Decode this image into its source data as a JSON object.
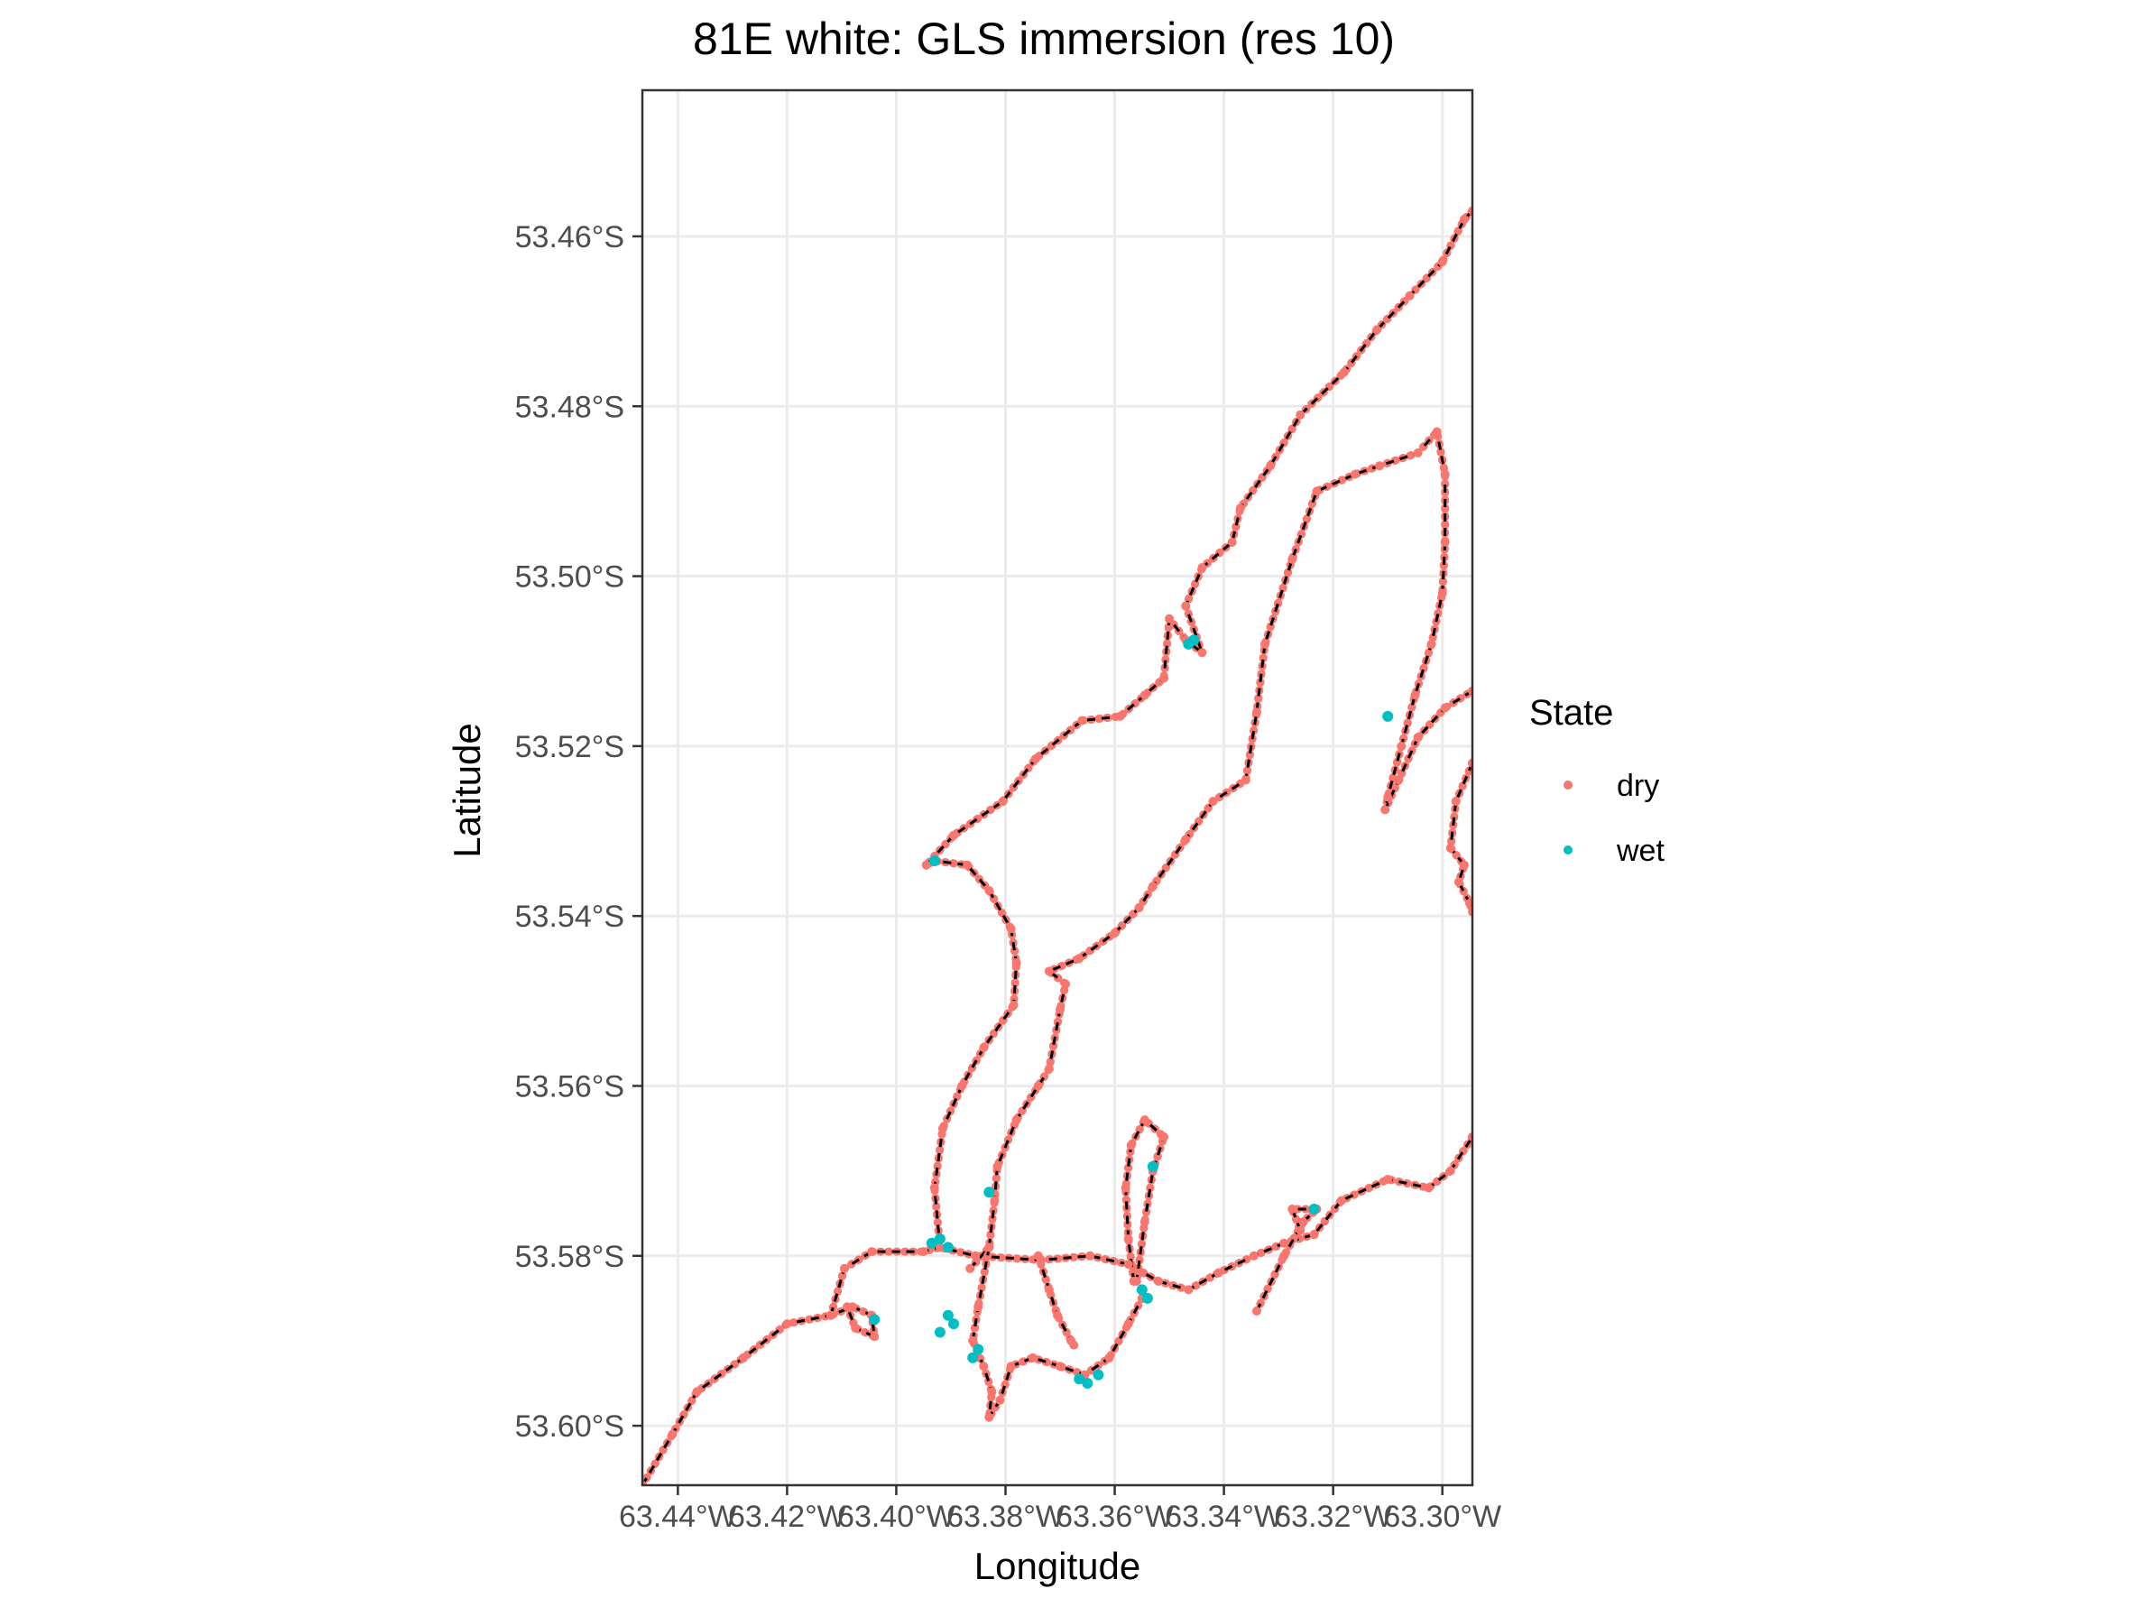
{
  "chart_data": {
    "type": "scatter",
    "title": "81E white: GLS immersion (res 10)",
    "xlabel": "Longitude",
    "ylabel": "Latitude",
    "xlim": [
      -63.4465,
      -63.2945
    ],
    "ylim": [
      -53.607,
      -53.4428
    ],
    "x_ticks": [
      {
        "value": -63.44,
        "label": "63.44°W"
      },
      {
        "value": -63.42,
        "label": "63.42°W"
      },
      {
        "value": -63.4,
        "label": "63.40°W"
      },
      {
        "value": -63.38,
        "label": "63.38°W"
      },
      {
        "value": -63.36,
        "label": "63.36°W"
      },
      {
        "value": -63.34,
        "label": "63.34°W"
      },
      {
        "value": -63.32,
        "label": "63.32°W"
      },
      {
        "value": -63.3,
        "label": "63.30°W"
      }
    ],
    "y_ticks": [
      {
        "value": -53.46,
        "label": "53.46°S"
      },
      {
        "value": -53.48,
        "label": "53.48°S"
      },
      {
        "value": -53.5,
        "label": "53.50°S"
      },
      {
        "value": -53.52,
        "label": "53.52°S"
      },
      {
        "value": -53.54,
        "label": "53.54°S"
      },
      {
        "value": -53.56,
        "label": "53.56°S"
      },
      {
        "value": -53.58,
        "label": "53.58°S"
      },
      {
        "value": -53.6,
        "label": "53.60°S"
      }
    ],
    "grid": true,
    "legend": {
      "title": "State",
      "position": "right",
      "entries": [
        {
          "label": "dry",
          "color": "#F8766D"
        },
        {
          "label": "wet",
          "color": "#00BFC4"
        }
      ]
    },
    "track_line_color": "#000000",
    "paths": [
      {
        "state": "dry",
        "points": [
          [
            -63.4465,
            -53.607
          ],
          [
            -63.441,
            -53.601
          ],
          [
            -63.4365,
            -53.596
          ],
          [
            -63.428,
            -53.592
          ],
          [
            -63.42,
            -53.588
          ],
          [
            -63.412,
            -53.587
          ],
          [
            -63.408,
            -53.586
          ],
          [
            -63.4045,
            -53.587
          ],
          [
            -63.404,
            -53.5895
          ],
          [
            -63.4075,
            -53.5885
          ],
          [
            -63.409,
            -53.586
          ]
        ]
      },
      {
        "state": "dry",
        "points": [
          [
            -63.412,
            -53.587
          ],
          [
            -63.4095,
            -53.5815
          ],
          [
            -63.4045,
            -53.5795
          ],
          [
            -63.395,
            -53.5795
          ],
          [
            -63.392,
            -53.579
          ],
          [
            -63.3855,
            -53.58
          ],
          [
            -63.3735,
            -53.5805
          ],
          [
            -63.3645,
            -53.58
          ],
          [
            -63.3575,
            -53.581
          ],
          [
            -63.352,
            -53.583
          ],
          [
            -63.3465,
            -53.584
          ],
          [
            -63.341,
            -53.582
          ],
          [
            -63.3345,
            -53.58
          ],
          [
            -63.329,
            -53.5785
          ],
          [
            -63.3235,
            -53.5775
          ],
          [
            -63.3185,
            -53.5735
          ],
          [
            -63.31,
            -53.571
          ],
          [
            -63.3025,
            -53.572
          ],
          [
            -63.2985,
            -53.57
          ],
          [
            -63.2945,
            -53.566
          ]
        ]
      },
      {
        "state": "dry",
        "points": [
          [
            -63.3865,
            -53.5815
          ],
          [
            -63.383,
            -53.579
          ],
          [
            -63.382,
            -53.5735
          ],
          [
            -63.3815,
            -53.5695
          ],
          [
            -63.378,
            -53.564
          ],
          [
            -63.374,
            -53.56
          ],
          [
            -63.372,
            -53.558
          ],
          [
            -63.37,
            -53.551
          ],
          [
            -63.369,
            -53.548
          ],
          [
            -63.372,
            -53.5465
          ],
          [
            -63.3665,
            -53.545
          ],
          [
            -63.36,
            -53.542
          ],
          [
            -63.3555,
            -53.539
          ],
          [
            -63.353,
            -53.5365
          ],
          [
            -63.347,
            -53.531
          ],
          [
            -63.342,
            -53.5265
          ],
          [
            -63.336,
            -53.524
          ],
          [
            -63.334,
            -53.516
          ],
          [
            -63.3325,
            -53.508
          ],
          [
            -63.3275,
            -53.498
          ],
          [
            -63.323,
            -53.49
          ],
          [
            -63.316,
            -53.488
          ],
          [
            -63.3115,
            -53.487
          ],
          [
            -63.3045,
            -53.4855
          ],
          [
            -63.301,
            -53.483
          ],
          [
            -63.2995,
            -53.488
          ],
          [
            -63.2995,
            -53.496
          ],
          [
            -63.3,
            -53.502
          ],
          [
            -63.302,
            -53.508
          ],
          [
            -63.305,
            -53.514
          ],
          [
            -63.3075,
            -53.52
          ],
          [
            -63.31,
            -53.526
          ],
          [
            -63.3105,
            -53.5275
          ],
          [
            -63.308,
            -53.524
          ],
          [
            -63.3045,
            -53.519
          ],
          [
            -63.2995,
            -53.5155
          ],
          [
            -63.2945,
            -53.5135
          ]
        ]
      },
      {
        "state": "dry",
        "points": [
          [
            -63.2945,
            -53.522
          ],
          [
            -63.2975,
            -53.5265
          ],
          [
            -63.2985,
            -53.532
          ],
          [
            -63.296,
            -53.534
          ],
          [
            -63.297,
            -53.536
          ],
          [
            -63.295,
            -53.5385
          ],
          [
            -63.2945,
            -53.5395
          ]
        ]
      },
      {
        "state": "dry",
        "points": [
          [
            -63.392,
            -53.579
          ],
          [
            -63.393,
            -53.572
          ],
          [
            -63.3915,
            -53.565
          ],
          [
            -63.388,
            -53.56
          ],
          [
            -63.384,
            -53.5555
          ],
          [
            -63.3785,
            -53.5505
          ],
          [
            -63.378,
            -53.5455
          ],
          [
            -63.379,
            -53.5415
          ],
          [
            -63.383,
            -53.537
          ],
          [
            -63.387,
            -53.534
          ],
          [
            -63.393,
            -53.5335
          ],
          [
            -63.3945,
            -53.534
          ],
          [
            -63.3895,
            -53.5305
          ],
          [
            -63.3805,
            -53.5265
          ],
          [
            -63.3745,
            -53.5215
          ],
          [
            -63.366,
            -53.517
          ],
          [
            -63.359,
            -53.5165
          ],
          [
            -63.3545,
            -53.514
          ],
          [
            -63.351,
            -53.512
          ],
          [
            -63.35,
            -53.505
          ],
          [
            -63.347,
            -53.5075
          ],
          [
            -63.344,
            -53.509
          ],
          [
            -63.347,
            -53.5035
          ],
          [
            -63.344,
            -53.499
          ],
          [
            -63.3385,
            -53.496
          ],
          [
            -63.337,
            -53.492
          ],
          [
            -63.3315,
            -53.487
          ],
          [
            -63.326,
            -53.481
          ],
          [
            -63.318,
            -53.476
          ],
          [
            -63.312,
            -53.471
          ],
          [
            -63.306,
            -53.467
          ],
          [
            -63.3,
            -53.463
          ],
          [
            -63.296,
            -53.458
          ],
          [
            -63.2945,
            -53.457
          ]
        ]
      },
      {
        "state": "dry",
        "points": [
          [
            -63.383,
            -53.579
          ],
          [
            -63.385,
            -53.586
          ],
          [
            -63.386,
            -53.59
          ],
          [
            -63.384,
            -53.593
          ],
          [
            -63.3825,
            -53.596
          ],
          [
            -63.383,
            -53.599
          ],
          [
            -63.381,
            -53.597
          ],
          [
            -63.379,
            -53.593
          ],
          [
            -63.375,
            -53.592
          ],
          [
            -63.37,
            -53.593
          ],
          [
            -63.3655,
            -53.594
          ],
          [
            -63.361,
            -53.592
          ],
          [
            -63.3575,
            -53.588
          ],
          [
            -63.355,
            -53.585
          ]
        ]
      },
      {
        "state": "dry",
        "points": [
          [
            -63.374,
            -53.58
          ],
          [
            -63.372,
            -53.584
          ],
          [
            -63.3705,
            -53.587
          ],
          [
            -63.368,
            -53.59
          ],
          [
            -63.3675,
            -53.5905
          ]
        ]
      },
      {
        "state": "dry",
        "points": [
          [
            -63.3565,
            -53.583
          ],
          [
            -63.3575,
            -53.578
          ],
          [
            -63.358,
            -53.572
          ],
          [
            -63.357,
            -53.567
          ],
          [
            -63.3545,
            -53.564
          ],
          [
            -63.351,
            -53.566
          ],
          [
            -63.353,
            -53.57
          ],
          [
            -63.3545,
            -53.576
          ],
          [
            -63.356,
            -53.583
          ]
        ]
      },
      {
        "state": "dry",
        "points": [
          [
            -63.334,
            -53.5865
          ],
          [
            -63.329,
            -53.58
          ],
          [
            -63.3255,
            -53.576
          ],
          [
            -63.323,
            -53.5745
          ],
          [
            -63.3275,
            -53.5745
          ],
          [
            -63.326,
            -53.577
          ]
        ]
      }
    ],
    "wet_points": [
      [
        -63.3935,
        -53.5785
      ],
      [
        -63.392,
        -53.578
      ],
      [
        -63.3905,
        -53.579
      ],
      [
        -63.392,
        -53.589
      ],
      [
        -63.3905,
        -53.587
      ],
      [
        -63.3895,
        -53.588
      ],
      [
        -63.386,
        -53.592
      ],
      [
        -63.385,
        -53.591
      ],
      [
        -63.383,
        -53.5725
      ],
      [
        -63.3665,
        -53.5945
      ],
      [
        -63.365,
        -53.595
      ],
      [
        -63.363,
        -53.594
      ],
      [
        -63.355,
        -53.584
      ],
      [
        -63.354,
        -53.585
      ],
      [
        -63.353,
        -53.5695
      ],
      [
        -63.3465,
        -53.508
      ],
      [
        -63.3455,
        -53.5075
      ],
      [
        -63.31,
        -53.5165
      ],
      [
        -63.393,
        -53.5335
      ],
      [
        -63.404,
        -53.5875
      ],
      [
        -63.3235,
        -53.5745
      ]
    ]
  }
}
